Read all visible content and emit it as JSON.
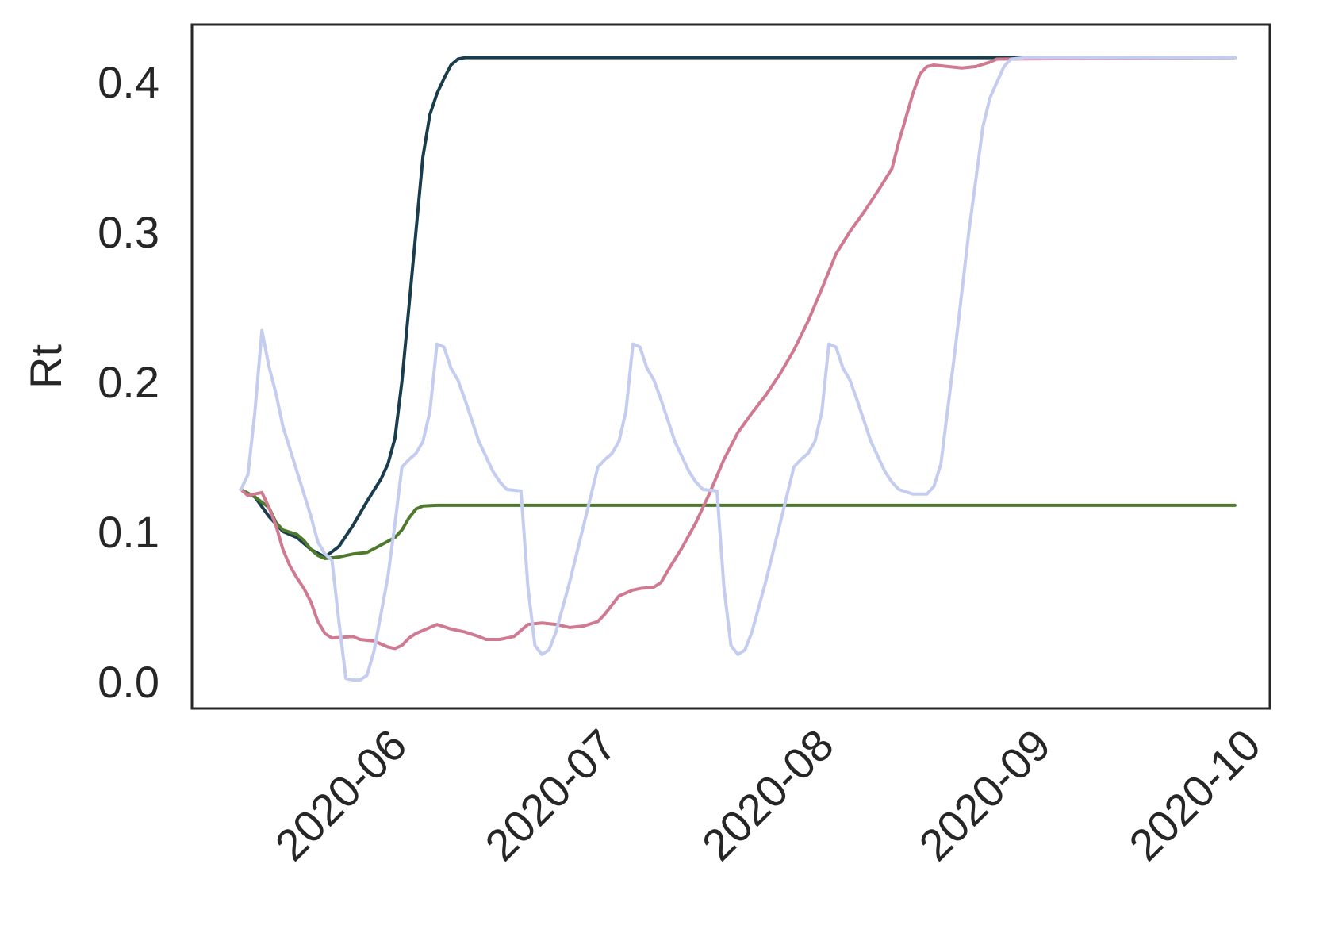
{
  "chart_data": {
    "type": "line",
    "title": "",
    "xlabel": "",
    "ylabel": "Rt",
    "ylim": [
      -0.018,
      0.438
    ],
    "xlim": [
      "2020-05-03",
      "2020-10-04"
    ],
    "grid": false,
    "y_ticks": [
      0.0,
      0.1,
      0.2,
      0.3,
      0.4
    ],
    "y_tick_labels": [
      "0.0",
      "0.1",
      "0.2",
      "0.3",
      "0.4"
    ],
    "x_ticks": [
      "2020-06-01",
      "2020-07-01",
      "2020-08-01",
      "2020-09-01",
      "2020-10-01"
    ],
    "x_tick_labels": [
      "2020-06",
      "2020-07",
      "2020-08",
      "2020-09",
      "2020-10"
    ],
    "series": [
      {
        "color": "#1a3d4d",
        "points": [
          [
            "2020-05-10",
            0.128
          ],
          [
            "2020-05-12",
            0.123
          ],
          [
            "2020-05-14",
            0.11
          ],
          [
            "2020-05-16",
            0.1
          ],
          [
            "2020-05-18",
            0.096
          ],
          [
            "2020-05-20",
            0.088
          ],
          [
            "2020-05-22",
            0.083
          ],
          [
            "2020-05-24",
            0.09
          ],
          [
            "2020-05-26",
            0.104
          ],
          [
            "2020-05-28",
            0.12
          ],
          [
            "2020-05-30",
            0.135
          ],
          [
            "2020-05-31",
            0.145
          ],
          [
            "2020-06-01",
            0.162
          ],
          [
            "2020-06-02",
            0.2
          ],
          [
            "2020-06-03",
            0.25
          ],
          [
            "2020-06-04",
            0.3
          ],
          [
            "2020-06-05",
            0.35
          ],
          [
            "2020-06-06",
            0.378
          ],
          [
            "2020-06-07",
            0.392
          ],
          [
            "2020-06-08",
            0.402
          ],
          [
            "2020-06-09",
            0.411
          ],
          [
            "2020-06-10",
            0.415
          ],
          [
            "2020-06-11",
            0.416
          ],
          [
            "2020-09-29",
            0.416
          ]
        ]
      },
      {
        "color": "#4f7a2e",
        "points": [
          [
            "2020-05-10",
            0.128
          ],
          [
            "2020-05-12",
            0.123
          ],
          [
            "2020-05-14",
            0.116
          ],
          [
            "2020-05-15",
            0.106
          ],
          [
            "2020-05-16",
            0.101
          ],
          [
            "2020-05-18",
            0.098
          ],
          [
            "2020-05-19",
            0.094
          ],
          [
            "2020-05-20",
            0.088
          ],
          [
            "2020-05-21",
            0.084
          ],
          [
            "2020-05-22",
            0.082
          ],
          [
            "2020-05-24",
            0.083
          ],
          [
            "2020-05-26",
            0.085
          ],
          [
            "2020-05-28",
            0.086
          ],
          [
            "2020-05-30",
            0.091
          ],
          [
            "2020-06-01",
            0.096
          ],
          [
            "2020-06-02",
            0.101
          ],
          [
            "2020-06-03",
            0.109
          ],
          [
            "2020-06-04",
            0.115
          ],
          [
            "2020-06-05",
            0.117
          ],
          [
            "2020-06-07",
            0.1175
          ],
          [
            "2020-09-29",
            0.1175
          ]
        ]
      },
      {
        "color": "#d07a92",
        "points": [
          [
            "2020-05-10",
            0.128
          ],
          [
            "2020-05-11",
            0.124
          ],
          [
            "2020-05-13",
            0.126
          ],
          [
            "2020-05-14",
            0.116
          ],
          [
            "2020-05-15",
            0.104
          ],
          [
            "2020-05-16",
            0.088
          ],
          [
            "2020-05-17",
            0.077
          ],
          [
            "2020-05-18",
            0.069
          ],
          [
            "2020-05-19",
            0.062
          ],
          [
            "2020-05-20",
            0.053
          ],
          [
            "2020-05-21",
            0.04
          ],
          [
            "2020-05-22",
            0.032
          ],
          [
            "2020-05-23",
            0.029
          ],
          [
            "2020-05-26",
            0.03
          ],
          [
            "2020-05-27",
            0.028
          ],
          [
            "2020-05-29",
            0.027
          ],
          [
            "2020-05-31",
            0.023
          ],
          [
            "2020-06-01",
            0.022
          ],
          [
            "2020-06-02",
            0.024
          ],
          [
            "2020-06-03",
            0.029
          ],
          [
            "2020-06-04",
            0.032
          ],
          [
            "2020-06-06",
            0.036
          ],
          [
            "2020-06-07",
            0.038
          ],
          [
            "2020-06-09",
            0.035
          ],
          [
            "2020-06-11",
            0.033
          ],
          [
            "2020-06-13",
            0.03
          ],
          [
            "2020-06-14",
            0.028
          ],
          [
            "2020-06-16",
            0.028
          ],
          [
            "2020-06-18",
            0.03
          ],
          [
            "2020-06-19",
            0.034
          ],
          [
            "2020-06-20",
            0.038
          ],
          [
            "2020-06-22",
            0.039
          ],
          [
            "2020-06-24",
            0.038
          ],
          [
            "2020-06-26",
            0.036
          ],
          [
            "2020-06-28",
            0.037
          ],
          [
            "2020-06-30",
            0.04
          ],
          [
            "2020-07-01",
            0.045
          ],
          [
            "2020-07-03",
            0.057
          ],
          [
            "2020-07-05",
            0.061
          ],
          [
            "2020-07-06",
            0.062
          ],
          [
            "2020-07-08",
            0.063
          ],
          [
            "2020-07-09",
            0.066
          ],
          [
            "2020-07-10",
            0.074
          ],
          [
            "2020-07-12",
            0.089
          ],
          [
            "2020-07-14",
            0.106
          ],
          [
            "2020-07-16",
            0.126
          ],
          [
            "2020-07-18",
            0.148
          ],
          [
            "2020-07-20",
            0.166
          ],
          [
            "2020-07-22",
            0.179
          ],
          [
            "2020-07-24",
            0.191
          ],
          [
            "2020-07-26",
            0.205
          ],
          [
            "2020-07-28",
            0.221
          ],
          [
            "2020-07-30",
            0.24
          ],
          [
            "2020-08-01",
            0.262
          ],
          [
            "2020-08-03",
            0.285
          ],
          [
            "2020-08-05",
            0.3
          ],
          [
            "2020-08-07",
            0.313
          ],
          [
            "2020-08-09",
            0.327
          ],
          [
            "2020-08-11",
            0.342
          ],
          [
            "2020-08-12",
            0.36
          ],
          [
            "2020-08-14",
            0.392
          ],
          [
            "2020-08-15",
            0.405
          ],
          [
            "2020-08-16",
            0.41
          ],
          [
            "2020-08-17",
            0.411
          ],
          [
            "2020-08-19",
            0.41
          ],
          [
            "2020-08-21",
            0.409
          ],
          [
            "2020-08-23",
            0.41
          ],
          [
            "2020-08-25",
            0.413
          ],
          [
            "2020-08-26",
            0.415
          ],
          [
            "2020-09-29",
            0.416
          ]
        ]
      },
      {
        "color": "#c4cdf0",
        "points": [
          [
            "2020-05-10",
            0.128
          ],
          [
            "2020-05-11",
            0.138
          ],
          [
            "2020-05-12",
            0.18
          ],
          [
            "2020-05-13",
            0.234
          ],
          [
            "2020-05-14",
            0.21
          ],
          [
            "2020-05-15",
            0.192
          ],
          [
            "2020-05-16",
            0.17
          ],
          [
            "2020-05-18",
            0.14
          ],
          [
            "2020-05-20",
            0.11
          ],
          [
            "2020-05-21",
            0.093
          ],
          [
            "2020-05-22",
            0.085
          ],
          [
            "2020-05-23",
            0.081
          ],
          [
            "2020-05-24",
            0.04
          ],
          [
            "2020-05-25",
            0.002
          ],
          [
            "2020-05-26",
            0.001
          ],
          [
            "2020-05-27",
            0.001
          ],
          [
            "2020-05-28",
            0.004
          ],
          [
            "2020-05-29",
            0.02
          ],
          [
            "2020-05-30",
            0.045
          ],
          [
            "2020-05-31",
            0.07
          ],
          [
            "2020-06-01",
            0.105
          ],
          [
            "2020-06-02",
            0.143
          ],
          [
            "2020-06-03",
            0.148
          ],
          [
            "2020-06-04",
            0.152
          ],
          [
            "2020-06-05",
            0.16
          ],
          [
            "2020-06-06",
            0.18
          ],
          [
            "2020-06-07",
            0.225
          ],
          [
            "2020-06-08",
            0.223
          ],
          [
            "2020-06-09",
            0.209
          ],
          [
            "2020-06-10",
            0.201
          ],
          [
            "2020-06-11",
            0.188
          ],
          [
            "2020-06-13",
            0.16
          ],
          [
            "2020-06-15",
            0.14
          ],
          [
            "2020-06-16",
            0.133
          ],
          [
            "2020-06-17",
            0.128
          ],
          [
            "2020-06-19",
            0.127
          ],
          [
            "2020-06-20",
            0.063
          ],
          [
            "2020-06-21",
            0.024
          ],
          [
            "2020-06-22",
            0.018
          ],
          [
            "2020-06-23",
            0.021
          ],
          [
            "2020-06-24",
            0.033
          ],
          [
            "2020-06-26",
            0.067
          ],
          [
            "2020-06-28",
            0.105
          ],
          [
            "2020-06-30",
            0.143
          ],
          [
            "2020-07-01",
            0.148
          ],
          [
            "2020-07-02",
            0.152
          ],
          [
            "2020-07-03",
            0.16
          ],
          [
            "2020-07-04",
            0.18
          ],
          [
            "2020-07-05",
            0.225
          ],
          [
            "2020-07-06",
            0.223
          ],
          [
            "2020-07-07",
            0.209
          ],
          [
            "2020-07-08",
            0.201
          ],
          [
            "2020-07-09",
            0.188
          ],
          [
            "2020-07-11",
            0.16
          ],
          [
            "2020-07-13",
            0.14
          ],
          [
            "2020-07-14",
            0.133
          ],
          [
            "2020-07-15",
            0.128
          ],
          [
            "2020-07-17",
            0.127
          ],
          [
            "2020-07-18",
            0.063
          ],
          [
            "2020-07-19",
            0.024
          ],
          [
            "2020-07-20",
            0.018
          ],
          [
            "2020-07-21",
            0.021
          ],
          [
            "2020-07-22",
            0.033
          ],
          [
            "2020-07-24",
            0.067
          ],
          [
            "2020-07-26",
            0.105
          ],
          [
            "2020-07-28",
            0.143
          ],
          [
            "2020-07-29",
            0.148
          ],
          [
            "2020-07-30",
            0.152
          ],
          [
            "2020-07-31",
            0.16
          ],
          [
            "2020-08-01",
            0.18
          ],
          [
            "2020-08-02",
            0.225
          ],
          [
            "2020-08-03",
            0.223
          ],
          [
            "2020-08-04",
            0.209
          ],
          [
            "2020-08-05",
            0.201
          ],
          [
            "2020-08-06",
            0.188
          ],
          [
            "2020-08-08",
            0.16
          ],
          [
            "2020-08-10",
            0.14
          ],
          [
            "2020-08-11",
            0.133
          ],
          [
            "2020-08-12",
            0.128
          ],
          [
            "2020-08-14",
            0.125
          ],
          [
            "2020-08-16",
            0.125
          ],
          [
            "2020-08-17",
            0.13
          ],
          [
            "2020-08-18",
            0.145
          ],
          [
            "2020-08-20",
            0.22
          ],
          [
            "2020-08-22",
            0.3
          ],
          [
            "2020-08-24",
            0.37
          ],
          [
            "2020-08-25",
            0.389
          ],
          [
            "2020-08-27",
            0.41
          ],
          [
            "2020-08-28",
            0.415
          ],
          [
            "2020-08-30",
            0.416
          ],
          [
            "2020-09-29",
            0.416
          ]
        ]
      }
    ]
  }
}
